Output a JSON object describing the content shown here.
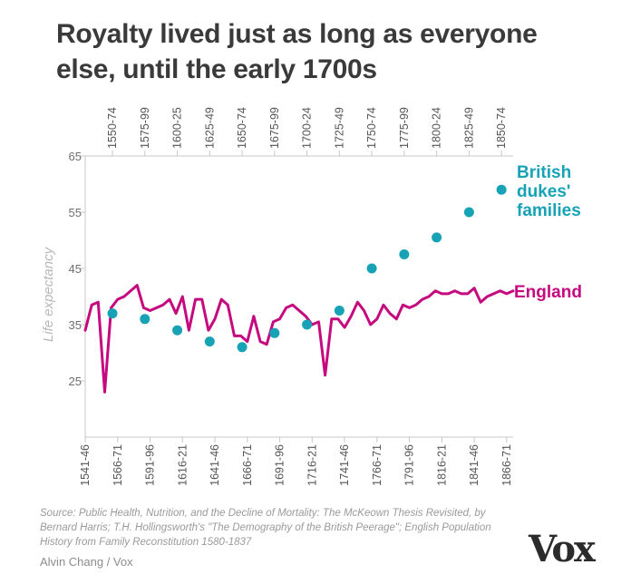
{
  "title": "Royalty lived just as long as everyone else, until the early 1700s",
  "source": "Source: Public Health, Nutrition, and the Decline of Mortality: The McKeown Thesis Revisited, by Bernard Harris; T.H. Hollingsworth's \"The Demography of the British Peerage\"; English Population History from Family Reconstitution 1580-1837",
  "credit": "Alvin Chang / Vox",
  "logo": "Vox",
  "colors": {
    "england": "#c5097e",
    "dukes": "#17a3b5",
    "axis": "#c8c8c8",
    "text": "#3a3a3a"
  },
  "chart_data": {
    "type": "line",
    "ylabel": "Life expectancy",
    "ylim": [
      15,
      65
    ],
    "yticks": [
      25,
      35,
      45,
      55,
      65
    ],
    "grid": false,
    "x_range": [
      1541,
      1871
    ],
    "bottom_axis": {
      "tick_labels": [
        "1541-46",
        "1566-71",
        "1591-96",
        "1616-21",
        "1641-46",
        "1666-71",
        "1691-96",
        "1716-21",
        "1741-46",
        "1766-71",
        "1791-96",
        "1816-21",
        "1841-46",
        "1866-71"
      ],
      "tick_years": [
        1541,
        1566,
        1591,
        1616,
        1641,
        1666,
        1691,
        1716,
        1741,
        1766,
        1791,
        1816,
        1841,
        1866
      ]
    },
    "top_axis": {
      "tick_labels": [
        "1550-74",
        "1575-99",
        "1600-25",
        "1625-49",
        "1650-74",
        "1675-99",
        "1700-24",
        "1725-49",
        "1750-74",
        "1775-99",
        "1800-24",
        "1825-49",
        "1850-74"
      ],
      "tick_years": [
        1562,
        1587,
        1612,
        1637,
        1662,
        1687,
        1712,
        1737,
        1762,
        1787,
        1812,
        1837,
        1862
      ]
    },
    "series": [
      {
        "name": "England",
        "kind": "line",
        "x": [
          1541,
          1546,
          1551,
          1556,
          1561,
          1566,
          1571,
          1576,
          1581,
          1586,
          1591,
          1596,
          1601,
          1606,
          1611,
          1616,
          1621,
          1626,
          1631,
          1636,
          1641,
          1646,
          1651,
          1656,
          1661,
          1666,
          1671,
          1676,
          1681,
          1686,
          1691,
          1696,
          1701,
          1706,
          1711,
          1716,
          1721,
          1726,
          1731,
          1736,
          1741,
          1746,
          1751,
          1756,
          1761,
          1766,
          1771,
          1776,
          1781,
          1786,
          1791,
          1796,
          1801,
          1806,
          1811,
          1816,
          1821,
          1826,
          1831,
          1836,
          1841,
          1846,
          1851,
          1856,
          1861,
          1866,
          1871
        ],
        "values": [
          34,
          38.5,
          39,
          23,
          38,
          39.5,
          40,
          41,
          42,
          38,
          37.5,
          38,
          38.5,
          39.5,
          37,
          40,
          34,
          39.5,
          39.5,
          34,
          36,
          39.5,
          38.5,
          33,
          33,
          32,
          36.5,
          32,
          31.5,
          35.5,
          36,
          38,
          38.5,
          37.5,
          36.5,
          35,
          35.5,
          26,
          36,
          36,
          34.5,
          36.5,
          39,
          37.5,
          35,
          36,
          38.5,
          37,
          36,
          38.5,
          38,
          38.5,
          39.5,
          40,
          41,
          40.5,
          40.5,
          41,
          40.5,
          40.5,
          41.5,
          39,
          40,
          40.5,
          41,
          40.5,
          41
        ]
      },
      {
        "name": "British dukes' families",
        "kind": "scatter",
        "x": [
          1562,
          1587,
          1612,
          1637,
          1662,
          1687,
          1712,
          1737,
          1762,
          1787,
          1812,
          1837,
          1862
        ],
        "values": [
          37,
          36,
          34,
          32,
          31,
          33.5,
          35,
          37.5,
          45,
          47.5,
          50.5,
          55,
          59
        ]
      }
    ],
    "labels": {
      "england": "England",
      "dukes_lines": [
        "British",
        "dukes'",
        "families"
      ]
    }
  }
}
